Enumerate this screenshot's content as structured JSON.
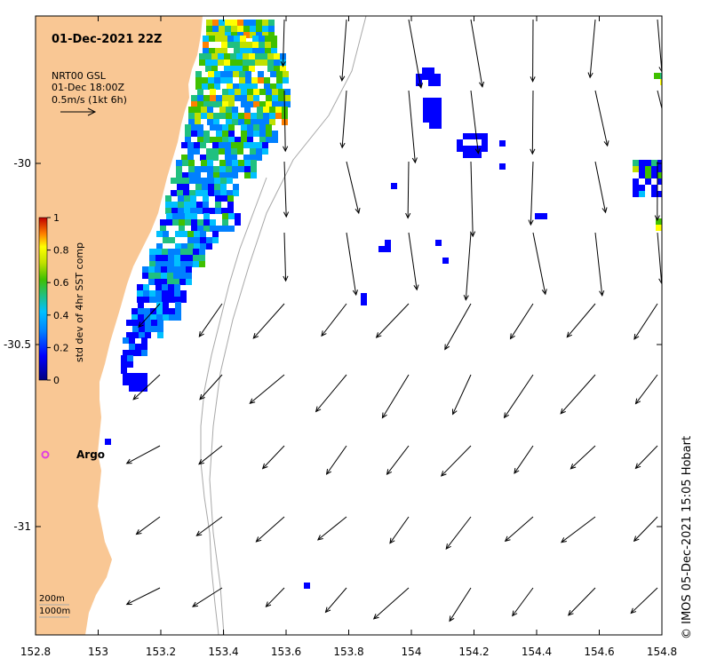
{
  "map": {
    "title": "01-Dec-2021 22Z",
    "scale_info": {
      "line1": "NRT00 GSL",
      "line2": "01-Dec 18:00Z",
      "line3": "0.5m/s (1kt 6h)"
    },
    "colorbar": {
      "label": "std dev of 4hr SST comp",
      "ticks": [
        "1",
        "0.8",
        "0.6",
        "0.4",
        "0.2",
        "0"
      ],
      "min": 0,
      "max": 1
    },
    "x_ticks": [
      "152.8",
      "153",
      "153.2",
      "153.4",
      "153.6",
      "153.8",
      "154",
      "154.2",
      "154.4",
      "154.6",
      "154.8"
    ],
    "y_ticks": [
      "-30",
      "-30.5",
      "-31"
    ],
    "argo_label": "Argo",
    "isobath_labels": [
      "200m",
      "1000m"
    ],
    "credit": "© IMOS 05-Dec-2021 15:05 Hobart",
    "colors": {
      "land": "#f9c794",
      "isobath": "#a8a8a8",
      "argo": "#e040e0",
      "arrow": "#000000"
    }
  }
}
